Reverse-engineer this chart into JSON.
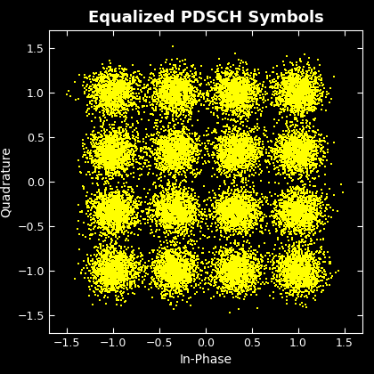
{
  "title": "Equalized PDSCH Symbols",
  "xlabel": "In-Phase",
  "ylabel": "Quadrature",
  "background_color": "#000000",
  "text_color": "#ffffff",
  "marker_color": "#ffff00",
  "marker": "s",
  "marker_size": 2.5,
  "xlim": [
    -1.7,
    1.7
  ],
  "ylim": [
    -1.7,
    1.7
  ],
  "xticks": [
    -1.5,
    -1.0,
    -0.5,
    0.0,
    0.5,
    1.0,
    1.5
  ],
  "yticks": [
    -1.5,
    -1.0,
    -0.5,
    0.0,
    0.5,
    1.0,
    1.5
  ],
  "constellation_points": [
    -1.0,
    -0.3333,
    0.3333,
    1.0
  ],
  "n_points": 20000,
  "noise_std": 0.13,
  "seed": 42,
  "title_fontsize": 13,
  "label_fontsize": 10,
  "tick_fontsize": 9
}
